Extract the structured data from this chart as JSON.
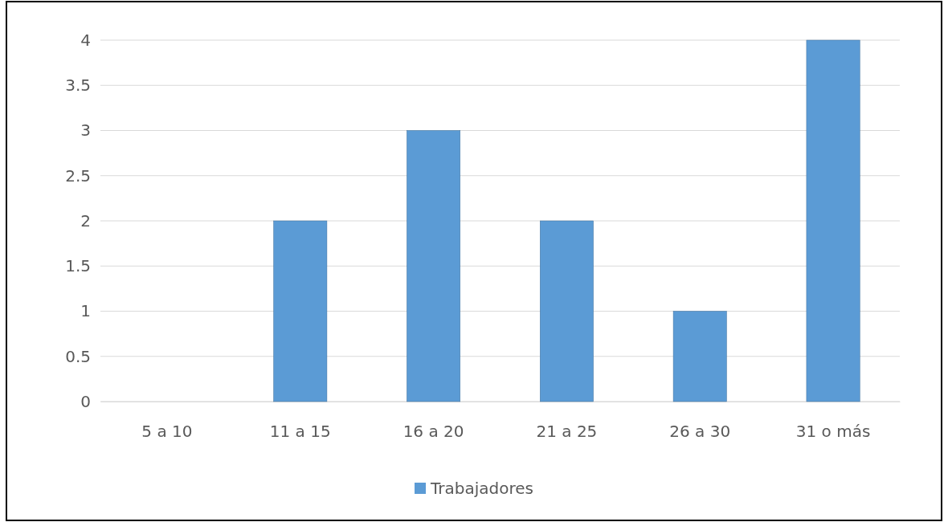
{
  "chart_data": {
    "type": "bar",
    "categories": [
      "5 a 10",
      "11 a 15",
      "16 a 20",
      "21 a 25",
      "26 a 30",
      "31 o más"
    ],
    "series": [
      {
        "name": "Trabajadores",
        "color": "#5b9bd5",
        "values": [
          0,
          2,
          3,
          2,
          1,
          4
        ]
      }
    ],
    "ylim": [
      0,
      4
    ],
    "yticks": [
      0,
      0.5,
      1,
      1.5,
      2,
      2.5,
      3,
      3.5,
      4
    ],
    "grid": "y",
    "legend": "bottom"
  }
}
